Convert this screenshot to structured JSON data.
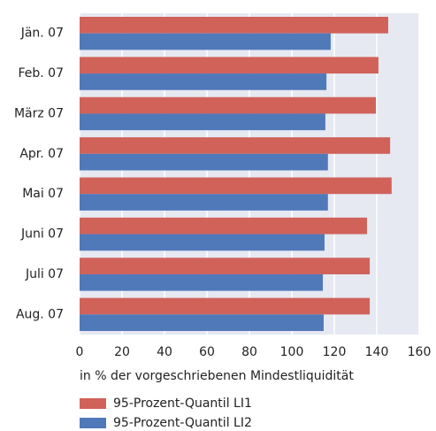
{
  "chart_data": {
    "type": "bar",
    "orientation": "horizontal",
    "categories": [
      "Jän. 07",
      "Feb. 07",
      "März 07",
      "Apr. 07",
      "Mai 07",
      "Juni 07",
      "Juli 07",
      "Aug. 07"
    ],
    "series": [
      {
        "name": "95-Prozent-Quantil LI1",
        "color": "#d0625a",
        "values": [
          145.4,
          140.8,
          139.6,
          146.3,
          147,
          135.4,
          136.7,
          136.7
        ]
      },
      {
        "name": "95-Prozent-Quantil LI2",
        "color": "#5079b9",
        "values": [
          118.3,
          116.3,
          115.8,
          117,
          117,
          115.4,
          114.6,
          115
        ]
      }
    ],
    "x_label": "in % der vorgeschriebenen Mindestliquidität",
    "xlim": [
      0,
      160
    ],
    "xticks": [
      0,
      20,
      40,
      60,
      80,
      100,
      120,
      140,
      160
    ],
    "grid": true
  }
}
